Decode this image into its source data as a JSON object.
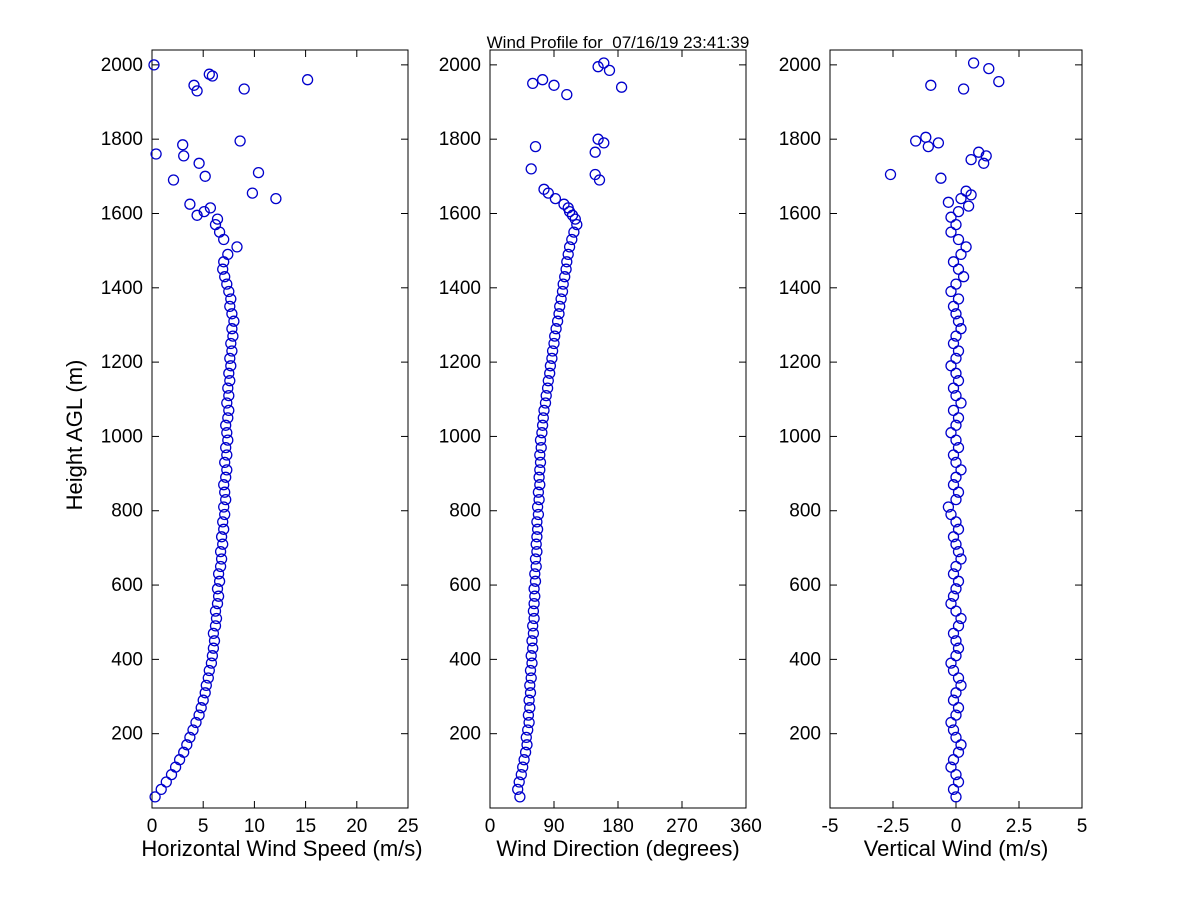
{
  "figure": {
    "title": "Wind Profile for  07/16/19 23:41:39"
  },
  "chart_data": {
    "type": "scatter",
    "title": "Wind Profile for  07/16/19 23:41:39",
    "ylabel": "Height AGL (m)",
    "ylim": [
      0,
      2040
    ],
    "yticks": [
      200,
      400,
      600,
      800,
      1000,
      1200,
      1400,
      1600,
      1800,
      2000
    ],
    "marker": {
      "shape": "open-circle",
      "color": "#0000cc",
      "radius": 5
    },
    "heights_main": [
      30,
      50,
      70,
      90,
      110,
      130,
      150,
      170,
      190,
      210,
      230,
      250,
      270,
      290,
      310,
      330,
      350,
      370,
      390,
      410,
      430,
      450,
      470,
      490,
      510,
      530,
      550,
      570,
      590,
      610,
      630,
      650,
      670,
      690,
      710,
      730,
      750,
      770,
      790,
      810,
      830,
      850,
      870,
      890,
      910,
      930,
      950,
      970,
      990,
      1010,
      1030,
      1050,
      1070,
      1090,
      1110,
      1130,
      1150,
      1170,
      1190,
      1210,
      1230,
      1250,
      1270,
      1290,
      1310,
      1330,
      1350,
      1370,
      1390,
      1410,
      1430,
      1450,
      1470,
      1490,
      1510,
      1530,
      1550,
      1570
    ],
    "panels": [
      {
        "xlabel": "Horizontal Wind Speed (m/s)",
        "xlim": [
          0,
          25
        ],
        "xticks": [
          0,
          5,
          10,
          15,
          20,
          25
        ],
        "values_main": [
          0.3,
          0.9,
          1.4,
          1.9,
          2.3,
          2.7,
          3.1,
          3.4,
          3.7,
          4.0,
          4.3,
          4.6,
          4.8,
          5.0,
          5.2,
          5.3,
          5.5,
          5.6,
          5.8,
          5.9,
          6.0,
          6.1,
          6.0,
          6.2,
          6.3,
          6.2,
          6.4,
          6.5,
          6.4,
          6.6,
          6.5,
          6.7,
          6.8,
          6.7,
          6.9,
          6.8,
          7.0,
          6.9,
          7.1,
          7.0,
          7.2,
          7.1,
          7.0,
          7.2,
          7.3,
          7.1,
          7.3,
          7.2,
          7.4,
          7.3,
          7.2,
          7.4,
          7.5,
          7.3,
          7.5,
          7.4,
          7.6,
          7.5,
          7.7,
          7.6,
          7.8,
          7.7,
          7.9,
          7.8,
          8.0,
          7.8,
          7.6,
          7.7,
          7.5,
          7.3,
          7.1,
          6.9,
          7.0,
          7.4,
          8.3,
          7.0,
          6.6,
          6.2
        ],
        "extra_points": [
          [
            2000,
            0.2
          ],
          [
            1975,
            5.6
          ],
          [
            1970,
            5.9
          ],
          [
            1960,
            15.2
          ],
          [
            1945,
            4.1
          ],
          [
            1935,
            9.0
          ],
          [
            1930,
            4.4
          ],
          [
            1795,
            8.6
          ],
          [
            1785,
            3.0
          ],
          [
            1760,
            0.4
          ],
          [
            1755,
            3.1
          ],
          [
            1735,
            4.6
          ],
          [
            1710,
            10.4
          ],
          [
            1700,
            5.2
          ],
          [
            1690,
            2.1
          ],
          [
            1655,
            9.8
          ],
          [
            1640,
            12.1
          ],
          [
            1625,
            3.7
          ],
          [
            1615,
            5.7
          ],
          [
            1605,
            5.1
          ],
          [
            1595,
            4.4
          ],
          [
            1585,
            6.4
          ]
        ]
      },
      {
        "xlabel": "Wind Direction (degrees)",
        "xlim": [
          0,
          360
        ],
        "xticks": [
          0,
          90,
          180,
          270,
          360
        ],
        "values_main": [
          42,
          39,
          41,
          44,
          46,
          48,
          50,
          52,
          51,
          53,
          55,
          54,
          56,
          55,
          57,
          56,
          58,
          57,
          59,
          58,
          60,
          59,
          61,
          60,
          62,
          61,
          62,
          63,
          62,
          64,
          63,
          65,
          64,
          66,
          65,
          66,
          67,
          66,
          68,
          67,
          69,
          68,
          70,
          69,
          70,
          71,
          70,
          72,
          71,
          73,
          74,
          75,
          76,
          78,
          79,
          81,
          82,
          84,
          85,
          87,
          88,
          90,
          91,
          93,
          95,
          97,
          98,
          100,
          102,
          103,
          105,
          107,
          108,
          110,
          112,
          115,
          118,
          122
        ],
        "extra_points": [
          [
            2005,
            160
          ],
          [
            1995,
            152
          ],
          [
            1985,
            168
          ],
          [
            1960,
            74
          ],
          [
            1950,
            60
          ],
          [
            1945,
            90
          ],
          [
            1940,
            185
          ],
          [
            1920,
            108
          ],
          [
            1800,
            152
          ],
          [
            1790,
            160
          ],
          [
            1780,
            64
          ],
          [
            1765,
            148
          ],
          [
            1720,
            58
          ],
          [
            1705,
            148
          ],
          [
            1690,
            154
          ],
          [
            1665,
            76
          ],
          [
            1655,
            82
          ],
          [
            1640,
            92
          ],
          [
            1625,
            104
          ],
          [
            1615,
            110
          ],
          [
            1605,
            112
          ],
          [
            1595,
            116
          ],
          [
            1585,
            120
          ]
        ]
      },
      {
        "xlabel": "Vertical Wind (m/s)",
        "xlim": [
          -5,
          5
        ],
        "xticks": [
          -5,
          -2.5,
          0,
          2.5,
          5
        ],
        "values_main": [
          0.0,
          -0.1,
          0.1,
          0.0,
          -0.2,
          -0.1,
          0.1,
          0.2,
          0.0,
          -0.1,
          -0.2,
          0.0,
          0.1,
          -0.1,
          0.0,
          0.2,
          0.1,
          -0.1,
          -0.2,
          0.0,
          0.1,
          0.0,
          -0.1,
          0.1,
          0.2,
          0.0,
          -0.2,
          -0.1,
          0.0,
          0.1,
          -0.1,
          0.0,
          0.2,
          0.1,
          0.0,
          -0.1,
          0.1,
          0.0,
          -0.2,
          -0.3,
          0.0,
          0.1,
          -0.1,
          0.0,
          0.2,
          0.0,
          -0.1,
          0.1,
          0.0,
          -0.2,
          0.0,
          0.1,
          -0.1,
          0.2,
          0.0,
          -0.1,
          0.1,
          0.0,
          -0.2,
          0.0,
          0.1,
          -0.1,
          0.0,
          0.2,
          0.1,
          0.0,
          -0.1,
          0.1,
          -0.2,
          0.0,
          0.3,
          0.1,
          -0.1,
          0.2,
          0.4,
          0.1,
          -0.2,
          0.0
        ],
        "extra_points": [
          [
            2005,
            0.7
          ],
          [
            1990,
            1.3
          ],
          [
            1955,
            1.7
          ],
          [
            1945,
            -1.0
          ],
          [
            1935,
            0.3
          ],
          [
            1805,
            -1.2
          ],
          [
            1795,
            -1.6
          ],
          [
            1790,
            -0.7
          ],
          [
            1780,
            -1.1
          ],
          [
            1765,
            0.9
          ],
          [
            1755,
            1.2
          ],
          [
            1745,
            0.6
          ],
          [
            1735,
            1.1
          ],
          [
            1705,
            -2.6
          ],
          [
            1695,
            -0.6
          ],
          [
            1660,
            0.4
          ],
          [
            1650,
            0.6
          ],
          [
            1640,
            0.2
          ],
          [
            1630,
            -0.3
          ],
          [
            1620,
            0.5
          ],
          [
            1605,
            0.1
          ],
          [
            1590,
            -0.2
          ]
        ]
      }
    ]
  }
}
